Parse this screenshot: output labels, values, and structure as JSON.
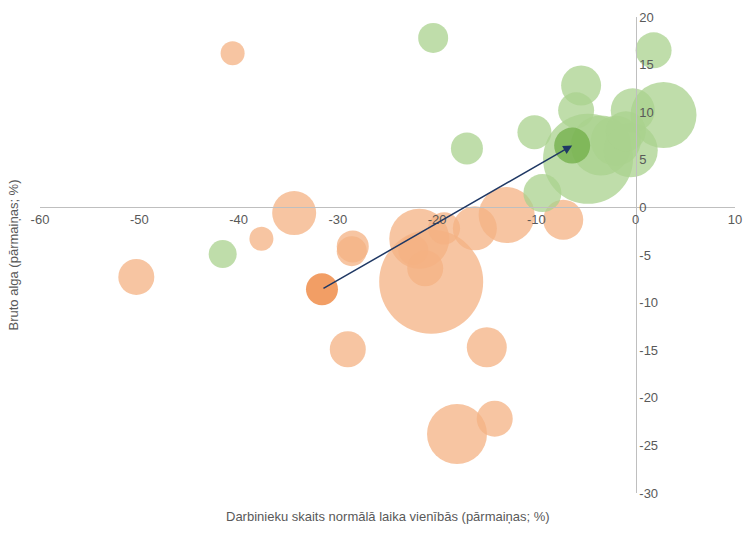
{
  "chart_data": {
    "type": "bubble",
    "x_label": "Darbinieku skaits normālā laika vienībās (pārmaiņas; %)",
    "y_label": "Bruto alga (pārmaiņas; %)",
    "xlim": [
      -60,
      10
    ],
    "xticks": [
      -60,
      -50,
      -40,
      -30,
      -20,
      -10,
      0,
      10
    ],
    "ylim": [
      -30,
      20
    ],
    "yticks": [
      -30,
      -25,
      -20,
      -15,
      -10,
      -5,
      0,
      5,
      10,
      15,
      20
    ],
    "grid": false,
    "series": [
      {
        "color": "#F4B183",
        "x": [
          -40.6,
          -50.3,
          -37.7,
          -34.4,
          -28.5,
          -28.6,
          -29.0,
          -21.8,
          -22.4,
          -21.2,
          -20.6,
          -19.3,
          -16.2,
          -13.0,
          -15.0,
          -18.0,
          -14.2,
          -7.3
        ],
        "y": [
          16.2,
          -7.3,
          -3.3,
          -0.6,
          -4.1,
          -4.6,
          -14.9,
          -3.3,
          -4.5,
          -6.4,
          -7.8,
          -2.2,
          -2.2,
          -0.8,
          -14.7,
          -23.8,
          -22.2,
          -1.3
        ],
        "size": [
          24,
          36,
          24,
          44,
          32,
          30,
          36,
          60,
          30,
          36,
          104,
          32,
          44,
          56,
          40,
          60,
          36,
          40
        ]
      },
      {
        "color": "#ED7D31",
        "x": [
          -31.6
        ],
        "y": [
          -8.6
        ],
        "size": [
          32
        ]
      },
      {
        "color": "#A9D18E",
        "x": [
          -20.4,
          -41.6,
          -17.0,
          -10.2,
          -9.4,
          -5.5,
          -6.0,
          -4.8,
          -3.5,
          -2.0,
          -0.3,
          -0.5,
          1.8,
          2.8,
          -1.0
        ],
        "y": [
          17.8,
          -4.9,
          6.2,
          7.9,
          1.5,
          12.8,
          10.2,
          5.1,
          6.5,
          7.0,
          10.2,
          6.0,
          16.5,
          9.7,
          8.0
        ],
        "size": [
          30,
          28,
          32,
          34,
          38,
          40,
          36,
          90,
          60,
          50,
          44,
          54,
          36,
          66,
          40
        ]
      },
      {
        "color": "#70AD47",
        "x": [
          -6.4
        ],
        "y": [
          6.5
        ],
        "size": [
          36
        ]
      }
    ],
    "arrow": {
      "from": [
        -31.6,
        -8.6
      ],
      "to": [
        -6.4,
        6.5
      ],
      "color": "#1F3864"
    }
  }
}
